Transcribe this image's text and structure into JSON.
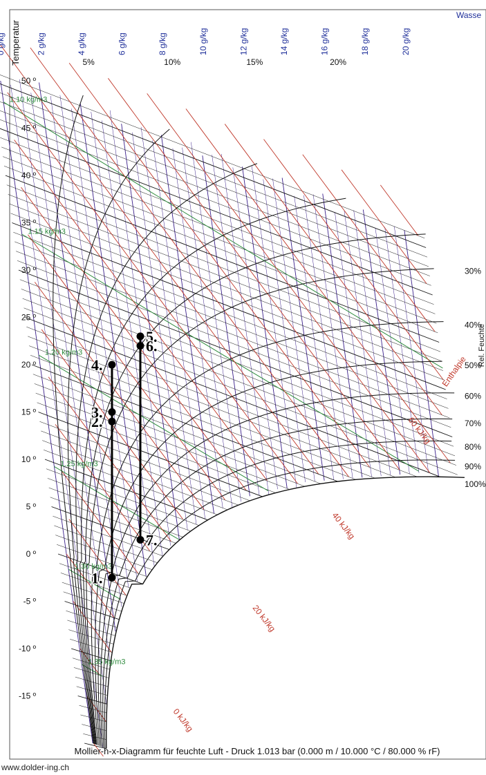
{
  "chart_data": {
    "type": "line",
    "title": "Mollier-h-x-Diagramm für feuchte Luft - Druck  1.013 bar (0.000 m / 10.000 °C / 80.000 % rF)",
    "ylabel": "Temperatur",
    "x_axis_label": "Wasse",
    "rh_axis_label": "Rel. Feuchte",
    "enthalpy_axis_label": "Enthalpie",
    "ylim": [
      -20,
      52
    ],
    "xlim": [
      0,
      21
    ],
    "x_tick_labels": [
      "0 g/kg",
      "2 g/kg",
      "4 g/kg",
      "6 g/kg",
      "8 g/kg",
      "10 g/kg",
      "12 g/kg",
      "14 g/kg",
      "16 g/kg",
      "18 g/kg",
      "20 g/kg"
    ],
    "x_ticks": [
      0,
      2,
      4,
      6,
      8,
      10,
      12,
      14,
      16,
      18,
      20
    ],
    "y_tick_labels": [
      "50 º",
      "45 º",
      "40 º",
      "35 º",
      "30 º",
      "25 º",
      "20 º",
      "15 º",
      "10 º",
      "5 º",
      "0 º",
      "-5 º",
      "-10 º",
      "-15 º"
    ],
    "y_ticks": [
      50,
      45,
      40,
      35,
      30,
      25,
      20,
      15,
      10,
      5,
      0,
      -5,
      -10,
      -15
    ],
    "rh_top_labels": [
      "5%",
      "10%",
      "15%",
      "20%"
    ],
    "rh_top_values": [
      5,
      10,
      15,
      20
    ],
    "rh_right_labels": [
      "30%",
      "40%",
      "50%",
      "60%",
      "70%",
      "80%",
      "90%",
      "100%"
    ],
    "rh_right_values": [
      30,
      40,
      50,
      60,
      70,
      80,
      90,
      100
    ],
    "enthalpy_labels": [
      "0 kJ/kg",
      "20 kJ/kg",
      "40 kJ/kg",
      "60 kJ/kg"
    ],
    "enthalpy_values": [
      0,
      20,
      40,
      60
    ],
    "density_labels": [
      "1.10 kg/m3",
      "1.15 kg/m3",
      "1.20 kg/m3",
      "1.25 kg/m3",
      "1.30 kg/m3",
      "1.35 kg/m3"
    ],
    "density_values": [
      1.1,
      1.15,
      1.2,
      1.25,
      1.3,
      1.35
    ],
    "points": [
      {
        "label": "1.",
        "x": 2.9,
        "y": -2.5
      },
      {
        "label": "2.",
        "x": 2.9,
        "y": 14
      },
      {
        "label": "3.",
        "x": 2.9,
        "y": 15
      },
      {
        "label": "4.",
        "x": 2.9,
        "y": 20
      },
      {
        "label": "5.",
        "x": 4.3,
        "y": 23
      },
      {
        "label": "6.",
        "x": 4.3,
        "y": 22
      },
      {
        "label": "7.",
        "x": 4.3,
        "y": 1.5
      }
    ],
    "process_lines": [
      {
        "from": "1.",
        "to": "4."
      },
      {
        "from": "7.",
        "to": "5."
      }
    ],
    "colors": {
      "water": "#1f2f9a",
      "rh": "#111111",
      "enthalpy": "#c0392b",
      "isotherm": "#111111",
      "density": "#2e8b3d",
      "fine": "#3a1f8a"
    }
  },
  "footer": {
    "url": "www.dolder-ing.ch"
  }
}
